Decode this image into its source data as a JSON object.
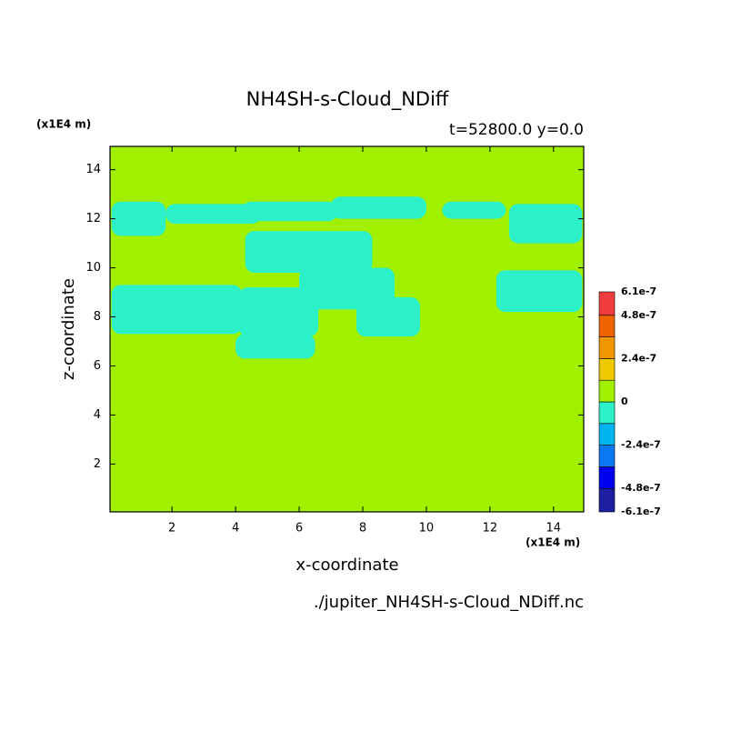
{
  "chart_data": {
    "type": "filled-contour",
    "title": "NH4SH-s-Cloud_NDiff",
    "subtitle": "t=52800.0 y=0.0",
    "x_label": "x-coordinate",
    "y_label": "z-coordinate",
    "x_unit": "(x1E4 m)",
    "y_unit": "(x1E4 m)",
    "footer": "./jupiter_NH4SH-s-Cloud_NDiff.nc",
    "xlim": [
      0.05,
      14.95
    ],
    "ylim": [
      0.05,
      14.95
    ],
    "xticks": [
      2,
      4,
      6,
      8,
      10,
      12,
      14
    ],
    "yticks": [
      2,
      4,
      6,
      8,
      10,
      12,
      14
    ],
    "clevels": [
      -6.1e-07,
      -4.8e-07,
      -3.6e-07,
      -2.4e-07,
      -1.2e-07,
      0,
      1.2e-07,
      2.4e-07,
      3.6e-07,
      4.8e-07,
      6.1e-07
    ],
    "colors": [
      "#1e1ea0",
      "#0000f0",
      "#0a78f0",
      "#00b4f0",
      "#2cf0c8",
      "#a0f000",
      "#f0c800",
      "#f09600",
      "#f06400",
      "#f03c3c"
    ],
    "colorbar_ticks": [
      6.1e-07,
      4.8e-07,
      2.4e-07,
      0,
      -2.4e-07,
      -4.8e-07,
      -6.1e-07
    ],
    "fill_value": 5e-08,
    "patches": [
      {
        "value": -5e-08,
        "x": [
          0.1,
          1.8
        ],
        "z": [
          11.3,
          12.7
        ]
      },
      {
        "value": -5e-08,
        "x": [
          1.8,
          4.8
        ],
        "z": [
          11.8,
          12.6
        ]
      },
      {
        "value": -5e-08,
        "x": [
          4.2,
          7.2
        ],
        "z": [
          11.9,
          12.7
        ]
      },
      {
        "value": -5e-08,
        "x": [
          7.0,
          10.0
        ],
        "z": [
          12.0,
          12.9
        ]
      },
      {
        "value": -5e-08,
        "x": [
          10.5,
          12.5
        ],
        "z": [
          12.0,
          12.7
        ]
      },
      {
        "value": -5e-08,
        "x": [
          12.6,
          14.9
        ],
        "z": [
          11.0,
          12.6
        ]
      },
      {
        "value": -5e-08,
        "x": [
          4.3,
          8.3
        ],
        "z": [
          9.8,
          11.5
        ]
      },
      {
        "value": -5e-08,
        "x": [
          6.0,
          9.0
        ],
        "z": [
          8.3,
          10.0
        ]
      },
      {
        "value": -5e-08,
        "x": [
          7.8,
          9.8
        ],
        "z": [
          7.2,
          8.8
        ]
      },
      {
        "value": -5e-08,
        "x": [
          4.1,
          6.6
        ],
        "z": [
          7.2,
          9.2
        ]
      },
      {
        "value": -5e-08,
        "x": [
          0.1,
          4.2
        ],
        "z": [
          7.3,
          9.3
        ]
      },
      {
        "value": -5e-08,
        "x": [
          4.0,
          6.5
        ],
        "z": [
          6.3,
          7.3
        ]
      },
      {
        "value": -5e-08,
        "x": [
          12.2,
          14.9
        ],
        "z": [
          8.2,
          9.9
        ]
      }
    ]
  }
}
